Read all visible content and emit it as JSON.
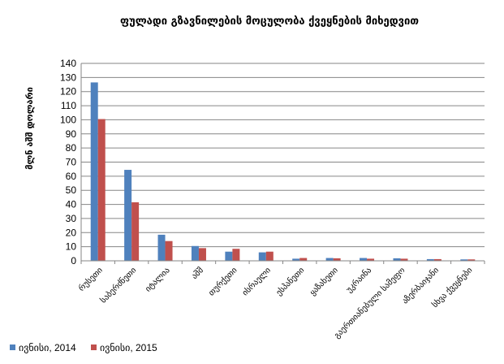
{
  "chart_data": {
    "type": "bar",
    "title": "ფულადი გზავნილების მოცულობა ქვეყნების მიხედვით",
    "ylabel": "მლნ აშშ დოლარი",
    "xlabel": "",
    "ylim": [
      0,
      140
    ],
    "yticks": [
      0,
      10,
      20,
      30,
      40,
      50,
      60,
      70,
      80,
      90,
      100,
      110,
      120,
      130,
      140
    ],
    "grid": true,
    "legend": "bottom-left",
    "categories": [
      "რუსეთი",
      "საბერძნეთი",
      "იტალია",
      "აშშ",
      "თურქეთი",
      "ისრაელი",
      "ესპანეთი",
      "ყაზახეთი",
      "უკრაინა",
      "გაერთიანებული სამეფო",
      "აზერბაიჯანი",
      "სხვა ქვეყნები"
    ],
    "series": [
      {
        "name": "ივნისი, 2014",
        "color": "#4F81BD",
        "values": [
          126.5,
          64.5,
          18.5,
          10.5,
          6.5,
          6.0,
          1.5,
          2.0,
          2.0,
          1.8,
          1.2,
          1.0
        ]
      },
      {
        "name": "ივნისი, 2015",
        "color": "#C0504D",
        "values": [
          100.5,
          41.5,
          14.0,
          9.0,
          8.5,
          6.5,
          2.0,
          1.8,
          1.5,
          1.5,
          1.2,
          1.0
        ]
      }
    ]
  },
  "axis_color": "#868686",
  "grid_color": "#868686"
}
